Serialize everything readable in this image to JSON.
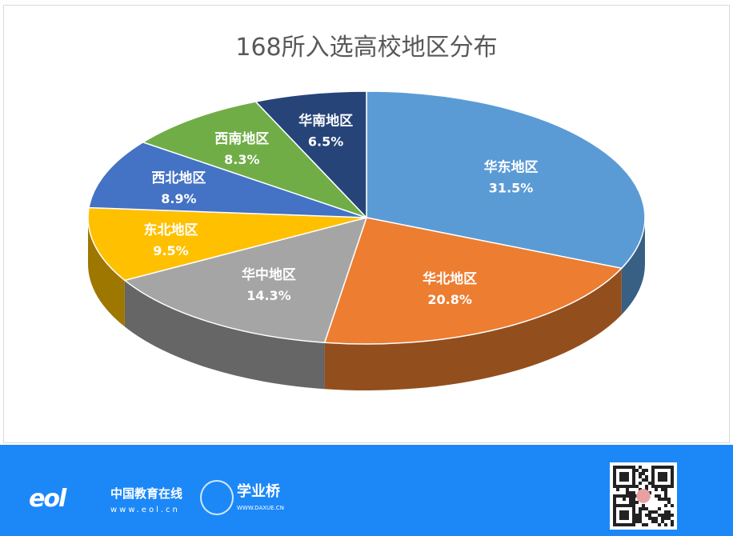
{
  "chart_data": {
    "type": "pie",
    "style": "3d",
    "title": "168所入选高校地区分布",
    "start": "top",
    "direction": "clockwise",
    "slices": [
      {
        "label": "华东地区",
        "value": 31.5,
        "value_label": "31.5%",
        "color": "#5B9BD5"
      },
      {
        "label": "华北地区",
        "value": 20.8,
        "value_label": "20.8%",
        "color": "#ED7D31"
      },
      {
        "label": "华中地区",
        "value": 14.3,
        "value_label": "14.3%",
        "color": "#A5A5A5"
      },
      {
        "label": "东北地区",
        "value": 9.5,
        "value_label": "9.5%",
        "color": "#FFC000"
      },
      {
        "label": "西北地区",
        "value": 8.9,
        "value_label": "8.9%",
        "color": "#4472C4"
      },
      {
        "label": "西南地区",
        "value": 8.3,
        "value_label": "8.3%",
        "color": "#70AD47"
      },
      {
        "label": "华南地区",
        "value": 6.5,
        "value_label": "6.5%",
        "color": "#264478"
      }
    ]
  },
  "footer": {
    "eol_name": "中国教育在线",
    "eol_url": "www.eol.cn",
    "eol_mark": "eol",
    "xyq_name": "学业桥",
    "xyq_url": "WWW.DAXUE.CN",
    "background": "#1C88F8"
  }
}
